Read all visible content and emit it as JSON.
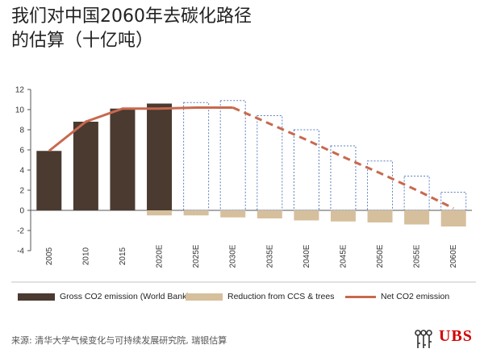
{
  "title_line1": "我们对中国2060年去碳化路径",
  "title_line2": "的估算（十亿吨）",
  "source": "来源: 清华大学气候变化与可持续发展研究院, 瑞银估算",
  "logo_text": "UBS",
  "colors": {
    "gross": "#4a3a30",
    "projected_outline": "#5b7fc0",
    "reduction": "#d6bf9c",
    "net": "#c8694e"
  },
  "chart_data": {
    "type": "bar",
    "title": "我们对中国2060年去碳化路径的估算（十亿吨）",
    "categories": [
      "2005",
      "2010",
      "2015",
      "2020E",
      "2025E",
      "2030E",
      "2035E",
      "2040E",
      "2045E",
      "2050E",
      "2055E",
      "2060E"
    ],
    "yticks": [
      "12",
      "10",
      "8",
      "6",
      "4",
      "2",
      "0",
      "-2",
      "-4"
    ],
    "ylim": [
      -4,
      12
    ],
    "grid": false,
    "legend_position": "bottom",
    "series": [
      {
        "name": "Gross CO2 emission (World Bank)",
        "type": "bar",
        "values": [
          5.9,
          8.8,
          10.1,
          10.6,
          10.7,
          10.9,
          9.4,
          8.0,
          6.4,
          4.9,
          3.4,
          1.8
        ],
        "projected_from_index": 4
      },
      {
        "name": "Reduction from CCS & trees",
        "type": "bar",
        "values": [
          0,
          0,
          0,
          -0.5,
          -0.5,
          -0.7,
          -0.8,
          -1.0,
          -1.1,
          -1.2,
          -1.4,
          -1.6
        ]
      },
      {
        "name": "Net CO2 emission",
        "type": "line",
        "values": [
          5.9,
          8.8,
          10.1,
          10.1,
          10.2,
          10.2,
          8.6,
          7.0,
          5.3,
          3.7,
          2.0,
          0.2
        ],
        "dashed_from_index": 5
      }
    ]
  }
}
